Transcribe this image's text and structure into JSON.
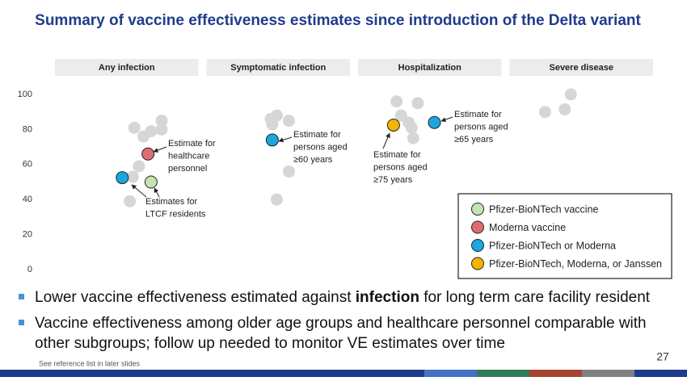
{
  "chart_data": {
    "type": "scatter",
    "title": "Summary of vaccine effectiveness estimates since introduction of the Delta variant",
    "categories": [
      "Any infection",
      "Symptomatic infection",
      "Hospitalization",
      "Severe disease"
    ],
    "xlim": [
      0,
      4
    ],
    "ylim": [
      0,
      100
    ],
    "yticks": [
      0,
      20,
      40,
      60,
      80,
      100
    ],
    "series": [
      {
        "color": "#d6d6d6",
        "x": [
          0.54,
          0.6,
          0.65,
          0.72,
          0.72,
          0.57,
          0.53,
          0.51,
          1.44,
          1.48,
          1.45,
          1.56,
          1.56,
          1.48,
          2.27,
          2.41,
          2.3,
          2.35,
          2.37,
          2.38,
          3.25,
          3.38,
          3.42
        ],
        "values": [
          81,
          76,
          79,
          85,
          80,
          59,
          53,
          39,
          86,
          88,
          83,
          85,
          56,
          40,
          96,
          95,
          88,
          84,
          81,
          75,
          90,
          91.5,
          100
        ]
      },
      {
        "name": "Pfizer-BioNTech vaccine",
        "color": "#c5e3b0",
        "x": [
          0.65
        ],
        "values": [
          50
        ]
      },
      {
        "name": "Moderna vaccine",
        "color": "#e06b74",
        "x": [
          0.63
        ],
        "values": [
          66
        ]
      },
      {
        "name": "Pfizer-BioNTech or Moderna",
        "color": "#1aa7df",
        "x": [
          0.46,
          1.45,
          2.52
        ],
        "values": [
          52.5,
          74,
          84
        ]
      },
      {
        "name": "Pfizer-BioNTech, Moderna, or Janssen",
        "color": "#f4b400",
        "x": [
          2.25
        ],
        "values": [
          82.5
        ]
      }
    ],
    "annotations": [
      {
        "lines": [
          "Estimate for",
          "healthcare",
          "personnel"
        ]
      },
      {
        "lines": [
          "Estimates for",
          "LTCF residents"
        ]
      },
      {
        "lines": [
          "Estimate for",
          "persons aged",
          "≥60 years"
        ]
      },
      {
        "lines": [
          "Estimate for",
          "persons aged",
          "≥75 years"
        ]
      },
      {
        "lines": [
          "Estimate for",
          "persons aged",
          "≥65 years"
        ]
      }
    ]
  },
  "bullets": [
    {
      "parts": [
        "Lower vaccine effectiveness estimated against ",
        "infection",
        " for long term care facility resident"
      ]
    },
    {
      "lines": [
        "Vaccine effectiveness among older age groups and healthcare personnel comparable with",
        "other subgroups; follow up needed to monitor VE estimates over time"
      ]
    }
  ],
  "footnote": "See reference list in later slides",
  "page_number": 27
}
